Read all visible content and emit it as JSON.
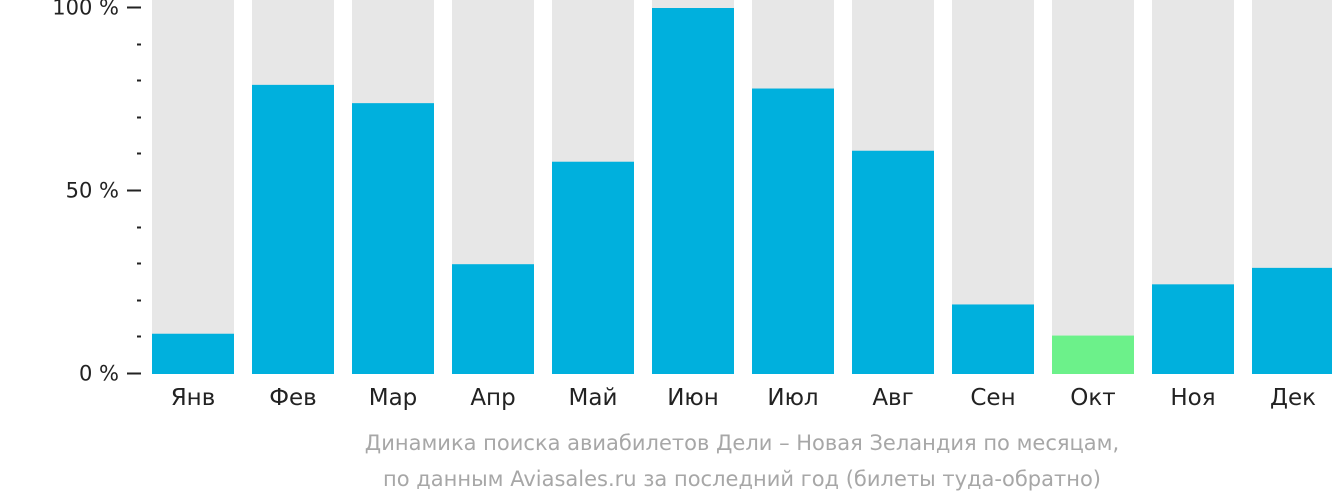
{
  "chart_data": {
    "type": "bar",
    "categories": [
      "Янв",
      "Фев",
      "Мар",
      "Апр",
      "Май",
      "Июн",
      "Июл",
      "Авг",
      "Сен",
      "Окт",
      "Ноя",
      "Дек"
    ],
    "values": [
      11,
      79,
      74,
      30,
      58,
      100,
      78,
      61,
      19,
      10.5,
      24.5,
      29
    ],
    "highlight_index": 9,
    "ylim": [
      0,
      100
    ],
    "yticks": [
      {
        "value": 0,
        "label": "0 %"
      },
      {
        "value": 50,
        "label": "50 %"
      },
      {
        "value": 100,
        "label": "100 %"
      }
    ],
    "minor_tick_step": 10,
    "grid": false,
    "caption": [
      "Динамика поиска авиабилетов Дели – Новая Зеландия по месяцам,",
      "по данным Aviasales.ru за последний год (билеты туда-обратно)"
    ]
  },
  "colors": {
    "bar": "#00b0dd",
    "highlight": "#6cf18a",
    "track": "#e7e7e7",
    "axis": "#222222",
    "caption": "#a7a7a7"
  }
}
